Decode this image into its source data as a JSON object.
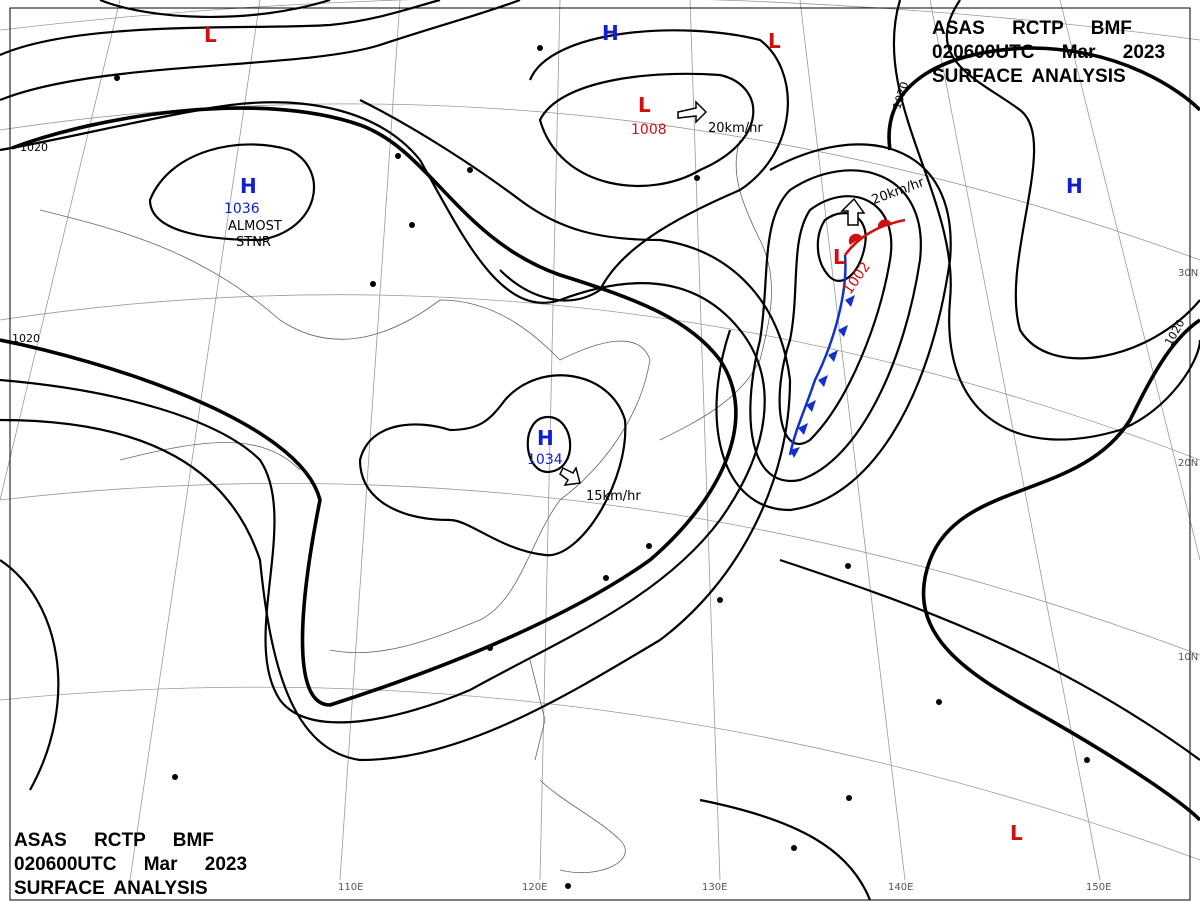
{
  "header": {
    "lines": [
      "ASAS RCTP BMF",
      "020600UTC Mar 2023",
      "SURFACE ANALYSIS"
    ]
  },
  "footer": {
    "lines": [
      "ASAS RCTP BMF",
      "020600UTC Mar 2023",
      "SURFACE ANALYSIS"
    ]
  },
  "pressure_centers": [
    {
      "label": "L"
    },
    {
      "label": "H"
    },
    {
      "label": "L"
    },
    {
      "label": "H",
      "value": 1036
    },
    {
      "label": "L",
      "value": 1008
    },
    {
      "label": "L",
      "value": 1002
    },
    {
      "label": "H",
      "value": 1034
    },
    {
      "label": "H"
    },
    {
      "label": "L"
    }
  ],
  "isobar_labels": [
    1020,
    1020,
    1020,
    1020
  ],
  "motion_labels": [
    "20km/hr",
    "20km/hr",
    "15km/hr"
  ],
  "annotations": [
    "ALMOST",
    "STNR"
  ],
  "grid_labels": {
    "lat": [
      "30N",
      "20N",
      "10N"
    ],
    "lon": [
      "110E",
      "120E",
      "130E",
      "140E",
      "150E"
    ]
  }
}
